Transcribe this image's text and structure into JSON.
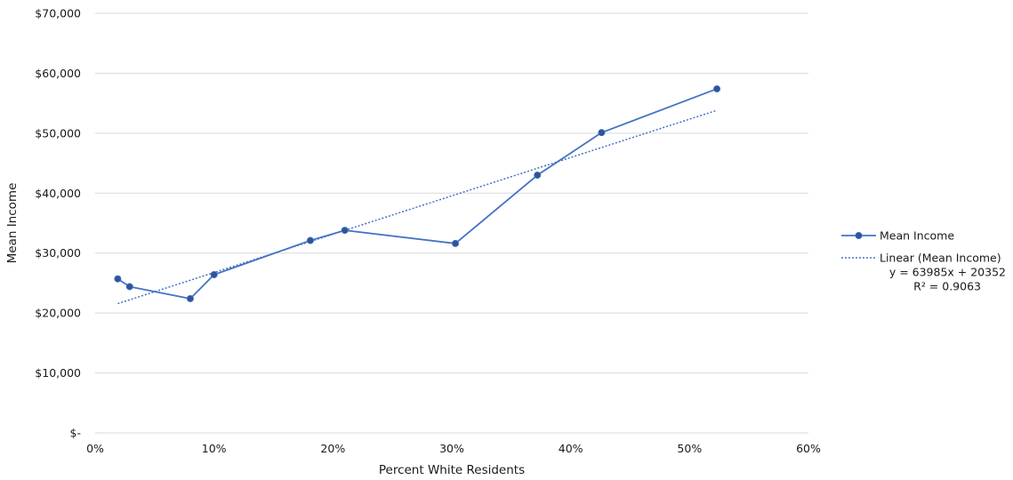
{
  "chart_data": {
    "type": "line",
    "xlabel": "Percent White Residents",
    "ylabel": "Mean Income",
    "xlim": [
      0,
      0.6
    ],
    "ylim": [
      0,
      70000
    ],
    "x_ticks": [
      0,
      0.1,
      0.2,
      0.3,
      0.4,
      0.5,
      0.6
    ],
    "x_tick_labels": [
      "0%",
      "10%",
      "20%",
      "30%",
      "40%",
      "50%",
      "60%"
    ],
    "y_ticks": [
      0,
      10000,
      20000,
      30000,
      40000,
      50000,
      60000,
      70000
    ],
    "y_tick_labels": [
      "$-",
      "$10,000",
      "$20,000",
      "$30,000",
      "$40,000",
      "$50,000",
      "$60,000",
      "$70,000"
    ],
    "grid": "horizontal",
    "legend_position": "right",
    "colors": {
      "series": "#4472c4",
      "marker": "#2e5597",
      "trendline": "#4472c4",
      "grid": "#d9d9d9"
    },
    "series": [
      {
        "name": "Mean Income",
        "x": [
          0.019,
          0.029,
          0.08,
          0.1,
          0.181,
          0.21,
          0.303,
          0.372,
          0.426,
          0.523
        ],
        "y": [
          25700,
          24400,
          22400,
          26400,
          32100,
          33800,
          31600,
          43000,
          50100,
          57400
        ]
      }
    ],
    "trendline": {
      "name": "Linear (Mean Income)",
      "type": "linear",
      "slope": 63985,
      "intercept": 20352,
      "equation": "y = 63985x + 20352",
      "r_squared": "R² = 0.9063"
    }
  }
}
